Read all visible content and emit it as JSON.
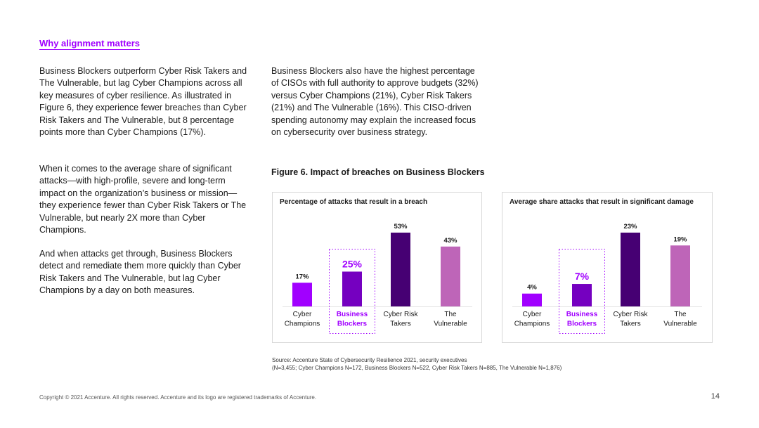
{
  "section_label": "Why alignment matters",
  "paragraphs": {
    "left1": "Business Blockers outperform Cyber Risk Takers and The Vulnerable, but lag Cyber Champions across all key measures of cyber resilience. As illustrated in Figure 6, they experience fewer breaches than Cyber Risk Takers and The Vulnerable, but 8 percentage points more than Cyber Champions (17%).",
    "left2": "When it comes to the average share of significant attacks—with high-profile, severe and long-term impact on the organization’s business or mission—they experience fewer than Cyber Risk Takers or The Vulnerable, but nearly 2X more than Cyber Champions.",
    "left3": "And when attacks get through, Business Blockers detect and remediate them more quickly than Cyber Risk Takers and The Vulnerable, but lag Cyber Champions by a day on both measures.",
    "right1": "Business Blockers also have the highest percentage of CISOs with full authority to approve budgets (32%) versus Cyber Champions (21%), Cyber Risk Takers (21%) and The Vulnerable (16%). This CISO-driven spending autonomy may explain the increased focus on cybersecurity over business strategy."
  },
  "figure_title": "Figure 6. Impact of breaches on Business Blockers",
  "chart_data": [
    {
      "type": "bar",
      "title": "Percentage of attacks that result in a breach",
      "categories": [
        [
          "Cyber",
          "Champions"
        ],
        [
          "Business",
          "Blockers"
        ],
        [
          "Cyber Risk",
          "Takers"
        ],
        [
          "The",
          "Vulnerable"
        ]
      ],
      "values": [
        17,
        25,
        53,
        43
      ],
      "labels": [
        "17%",
        "25%",
        "53%",
        "43%"
      ],
      "colors": [
        "#a100ff",
        "#7500c0",
        "#460073",
        "#be65b8"
      ],
      "highlight_index": 1,
      "ylim": [
        0,
        53
      ]
    },
    {
      "type": "bar",
      "title": "Average share attacks that result in significant damage",
      "categories": [
        [
          "Cyber",
          "Champions"
        ],
        [
          "Business",
          "Blockers"
        ],
        [
          "Cyber Risk",
          "Takers"
        ],
        [
          "The",
          "Vulnerable"
        ]
      ],
      "values": [
        4,
        7,
        23,
        19
      ],
      "labels": [
        "4%",
        "7%",
        "23%",
        "19%"
      ],
      "colors": [
        "#a100ff",
        "#7500c0",
        "#460073",
        "#be65b8"
      ],
      "highlight_index": 1,
      "ylim": [
        0,
        23
      ]
    }
  ],
  "source": {
    "line1": "Source: Accenture State of Cybersecurity Resilience 2021, security executives",
    "line2": "(N=3,455; Cyber Champions N=172, Business Blockers N=522, Cyber Risk Takers N=885, The Vulnerable N=1,876)"
  },
  "footer": "Copyright © 2021 Accenture. All rights reserved. Accenture and its logo are registered trademarks of Accenture.",
  "page_number": "14"
}
